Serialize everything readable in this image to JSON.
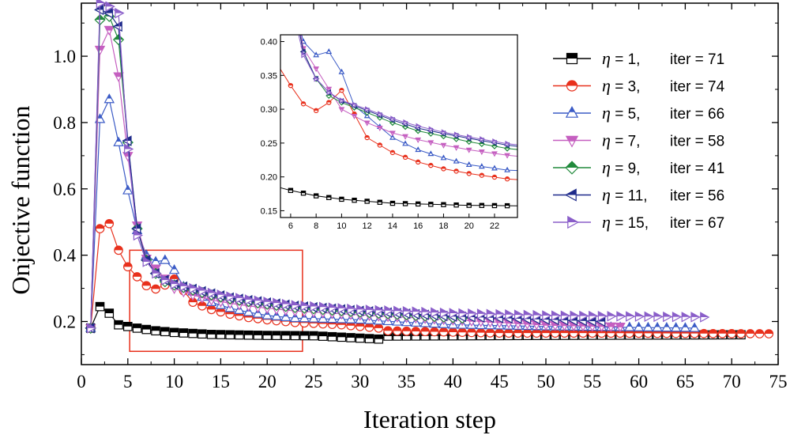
{
  "chart_data": [
    {
      "type": "line",
      "title": "",
      "xlabel": "Iteration step",
      "ylabel": "Onjective function",
      "xlim": [
        0,
        75
      ],
      "ylim": [
        0.07,
        1.16
      ],
      "xticks": [
        0,
        5,
        10,
        15,
        20,
        25,
        30,
        35,
        40,
        45,
        50,
        55,
        60,
        65,
        70,
        75
      ],
      "yticks": [
        0.2,
        0.4,
        0.6,
        0.8,
        1.0
      ],
      "ytick_labels": [
        "0.2",
        "0.4",
        "0.6",
        "0.8",
        "1.0"
      ],
      "legend_position": "right",
      "zoom_box": {
        "x": [
          5.2,
          23.8
        ],
        "y": [
          0.11,
          0.415
        ]
      },
      "series": [
        {
          "name": "η = 1",
          "eta_label": "η",
          "eq_label": " = 1,",
          "iter_label": "iter = 71",
          "color": "#000000",
          "marker": "square",
          "keypoints": [
            [
              1,
              0.18
            ],
            [
              2,
              0.245
            ],
            [
              3,
              0.225
            ],
            [
              4,
              0.19
            ],
            [
              5,
              0.185
            ],
            [
              6,
              0.18
            ],
            [
              8,
              0.172
            ],
            [
              10,
              0.167
            ],
            [
              14,
              0.161
            ],
            [
              20,
              0.158
            ],
            [
              25,
              0.157
            ],
            [
              32,
              0.147
            ],
            [
              33,
              0.156
            ],
            [
              50,
              0.158
            ],
            [
              71,
              0.16
            ]
          ]
        },
        {
          "name": "η = 3",
          "eta_label": "η",
          "eq_label": " = 3,",
          "iter_label": "iter = 74",
          "color": "#e8301c",
          "marker": "circle-half",
          "keypoints": [
            [
              1,
              0.18
            ],
            [
              2,
              0.48
            ],
            [
              3,
              0.495
            ],
            [
              4,
              0.415
            ],
            [
              5,
              0.365
            ],
            [
              6,
              0.335
            ],
            [
              7,
              0.308
            ],
            [
              8,
              0.298
            ],
            [
              9,
              0.31
            ],
            [
              10,
              0.328
            ],
            [
              12,
              0.258
            ],
            [
              14,
              0.236
            ],
            [
              16,
              0.222
            ],
            [
              18,
              0.212
            ],
            [
              20,
              0.205
            ],
            [
              23,
              0.197
            ],
            [
              28,
              0.19
            ],
            [
              32,
              0.18
            ],
            [
              33,
              0.172
            ],
            [
              45,
              0.165
            ],
            [
              55,
              0.165
            ],
            [
              74,
              0.163
            ]
          ]
        },
        {
          "name": "η = 5",
          "eta_label": "η",
          "eq_label": " = 5,",
          "iter_label": "iter = 66",
          "color": "#3b5bc6",
          "marker": "triangle-up",
          "keypoints": [
            [
              1,
              0.18
            ],
            [
              2,
              0.81
            ],
            [
              3,
              0.87
            ],
            [
              4,
              0.74
            ],
            [
              5,
              0.595
            ],
            [
              6,
              0.475
            ],
            [
              7,
              0.4
            ],
            [
              8,
              0.38
            ],
            [
              9,
              0.385
            ],
            [
              10,
              0.355
            ],
            [
              11,
              0.305
            ],
            [
              12,
              0.29
            ],
            [
              14,
              0.258
            ],
            [
              16,
              0.24
            ],
            [
              18,
              0.228
            ],
            [
              20,
              0.218
            ],
            [
              23,
              0.21
            ],
            [
              30,
              0.205
            ],
            [
              40,
              0.19
            ],
            [
              50,
              0.185
            ],
            [
              66,
              0.18
            ]
          ]
        },
        {
          "name": "η = 7",
          "eta_label": "η",
          "eq_label": " = 7,",
          "iter_label": "iter = 58",
          "color": "#c55fc0",
          "marker": "triangle-down",
          "keypoints": [
            [
              1,
              0.18
            ],
            [
              2,
              1.02
            ],
            [
              3,
              1.08
            ],
            [
              4,
              0.94
            ],
            [
              5,
              0.7
            ],
            [
              6,
              0.49
            ],
            [
              7,
              0.39
            ],
            [
              8,
              0.36
            ],
            [
              9,
              0.33
            ],
            [
              10,
              0.3
            ],
            [
              12,
              0.28
            ],
            [
              14,
              0.265
            ],
            [
              16,
              0.255
            ],
            [
              18,
              0.247
            ],
            [
              20,
              0.24
            ],
            [
              23,
              0.232
            ],
            [
              30,
              0.22
            ],
            [
              40,
              0.205
            ],
            [
              50,
              0.19
            ],
            [
              58,
              0.185
            ]
          ]
        },
        {
          "name": "η = 9",
          "eta_label": "η",
          "eq_label": " = 9,",
          "iter_label": "iter = 41",
          "color": "#218a3c",
          "marker": "diamond",
          "keypoints": [
            [
              1,
              0.18
            ],
            [
              2,
              1.11
            ],
            [
              3,
              1.12
            ],
            [
              4,
              1.05
            ],
            [
              5,
              0.74
            ],
            [
              6,
              0.48
            ],
            [
              7,
              0.385
            ],
            [
              8,
              0.345
            ],
            [
              9,
              0.32
            ],
            [
              10,
              0.31
            ],
            [
              12,
              0.295
            ],
            [
              14,
              0.28
            ],
            [
              16,
              0.268
            ],
            [
              18,
              0.26
            ],
            [
              20,
              0.252
            ],
            [
              23,
              0.242
            ],
            [
              30,
              0.228
            ],
            [
              41,
              0.21
            ]
          ]
        },
        {
          "name": "η = 11",
          "eta_label": "η",
          "eq_label": " = 11,",
          "iter_label": "iter = 56",
          "color": "#1e2a8a",
          "marker": "triangle-left",
          "keypoints": [
            [
              1,
              0.18
            ],
            [
              2,
              1.14
            ],
            [
              3,
              1.13
            ],
            [
              4,
              1.09
            ],
            [
              5,
              0.745
            ],
            [
              6,
              0.48
            ],
            [
              7,
              0.385
            ],
            [
              8,
              0.345
            ],
            [
              9,
              0.325
            ],
            [
              10,
              0.312
            ],
            [
              12,
              0.298
            ],
            [
              14,
              0.284
            ],
            [
              16,
              0.272
            ],
            [
              18,
              0.264
            ],
            [
              20,
              0.257
            ],
            [
              23,
              0.247
            ],
            [
              30,
              0.232
            ],
            [
              40,
              0.215
            ],
            [
              56,
              0.2
            ]
          ]
        },
        {
          "name": "η = 15",
          "eta_label": "η",
          "eq_label": " = 15,",
          "iter_label": "iter = 67",
          "color": "#8a5ec9",
          "marker": "triangle-right",
          "keypoints": [
            [
              1,
              0.18
            ],
            [
              2,
              1.16
            ],
            [
              3,
              1.15
            ],
            [
              4,
              1.13
            ],
            [
              5,
              0.72
            ],
            [
              6,
              0.46
            ],
            [
              7,
              0.38
            ],
            [
              8,
              0.345
            ],
            [
              9,
              0.325
            ],
            [
              10,
              0.313
            ],
            [
              12,
              0.3
            ],
            [
              14,
              0.286
            ],
            [
              16,
              0.275
            ],
            [
              18,
              0.266
            ],
            [
              20,
              0.259
            ],
            [
              23,
              0.249
            ],
            [
              30,
              0.236
            ],
            [
              40,
              0.225
            ],
            [
              50,
              0.218
            ],
            [
              67,
              0.213
            ]
          ]
        }
      ]
    },
    {
      "type": "line",
      "title": "",
      "xlim": [
        5.2,
        23.8
      ],
      "ylim": [
        0.14,
        0.41
      ],
      "xticks": [
        6,
        8,
        10,
        12,
        14,
        16,
        18,
        20,
        22
      ],
      "yticks": [
        0.15,
        0.2,
        0.25,
        0.3,
        0.35,
        0.4
      ],
      "ytick_labels": [
        "0.15",
        "0.20",
        "0.25",
        "0.30",
        "0.35",
        "0.40"
      ],
      "note": "inset zoom of main chart region, same series"
    }
  ]
}
